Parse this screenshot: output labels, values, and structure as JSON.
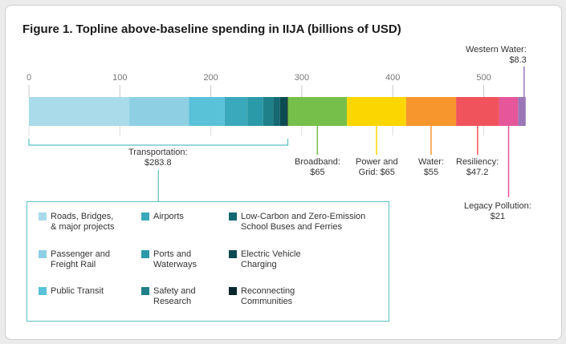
{
  "title": "Figure 1. Topline above-baseline spending in IIJA (billions of USD)",
  "chart_data": {
    "type": "bar",
    "orientation": "horizontal-stacked",
    "xlim": [
      0,
      556
    ],
    "ticks": [
      0,
      100,
      200,
      300,
      400,
      500
    ],
    "groups": [
      {
        "name": "Transportation",
        "value_label": "$283.8",
        "value": 283.8,
        "components": [
          {
            "name": "Roads, Bridges,\n& major projects",
            "value": 110,
            "color": "#a9dbea"
          },
          {
            "name": "Passenger and\nFreight Rail",
            "value": 66,
            "color": "#8ecfe3"
          },
          {
            "name": "Public Transit",
            "value": 39.2,
            "color": "#59c1d8"
          },
          {
            "name": "Airports",
            "value": 25,
            "color": "#3aa9bb"
          },
          {
            "name": "Ports and\nWaterways",
            "value": 17.4,
            "color": "#2a99a8"
          },
          {
            "name": "Safety and\nResearch",
            "value": 11,
            "color": "#1f8089"
          },
          {
            "name": "Low-Carbon and Zero-Emission\nSchool Buses and Ferries",
            "value": 7.5,
            "color": "#156871"
          },
          {
            "name": "Electric Vehicle\nCharging",
            "value": 7.5,
            "color": "#0d4b53"
          },
          {
            "name": "Reconnecting\nCommunities",
            "value": 1,
            "color": "#06262b"
          }
        ]
      },
      {
        "name": "Broadband",
        "label": "Broadband:\n$65",
        "value": 65,
        "color": "#76bf4b"
      },
      {
        "name": "Power and Grid",
        "label": "Power and\nGrid: $65",
        "value": 65,
        "color": "#fcd600"
      },
      {
        "name": "Water",
        "label": "Water:\n$55",
        "value": 55,
        "color": "#f7962d"
      },
      {
        "name": "Resiliency",
        "label": "Resiliency:\n$47.2",
        "value": 47.2,
        "color": "#f0535c"
      },
      {
        "name": "Legacy Pollution",
        "label": "Legacy Pollution:\n$21",
        "value": 21,
        "color": "#e5579a"
      },
      {
        "name": "Western Water",
        "label": "Western Water:\n$8.3",
        "value": 8.3,
        "color": "#9a78b8"
      }
    ],
    "transportation_label": "Transportation:\n$283.8"
  }
}
